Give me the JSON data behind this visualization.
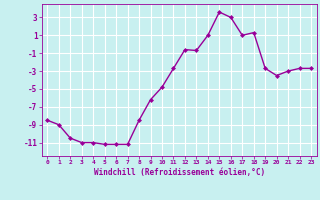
{
  "xlabel": "Windchill (Refroidissement éolien,°C)",
  "x": [
    0,
    1,
    2,
    3,
    4,
    5,
    6,
    7,
    8,
    9,
    10,
    11,
    12,
    13,
    14,
    15,
    16,
    17,
    18,
    19,
    20,
    21,
    22,
    23
  ],
  "y": [
    -8.5,
    -9.0,
    -10.5,
    -11.0,
    -11.0,
    -11.2,
    -11.2,
    -11.2,
    -8.5,
    -6.2,
    -4.8,
    -2.7,
    -0.6,
    -0.7,
    1.0,
    3.6,
    3.0,
    1.0,
    1.3,
    -2.7,
    -3.5,
    -3.0,
    -2.7,
    -2.7
  ],
  "line_color": "#990099",
  "marker": "D",
  "markersize": 2,
  "linewidth": 1.0,
  "bg_color": "#c8f0f0",
  "grid_color": "#aadddd",
  "tick_color": "#990099",
  "label_color": "#990099",
  "ylim": [
    -12.5,
    4.5
  ],
  "yticks": [
    3,
    1,
    -1,
    -3,
    -5,
    -7,
    -9,
    -11
  ],
  "xticks": [
    0,
    1,
    2,
    3,
    4,
    5,
    6,
    7,
    8,
    9,
    10,
    11,
    12,
    13,
    14,
    15,
    16,
    17,
    18,
    19,
    20,
    21,
    22,
    23
  ]
}
